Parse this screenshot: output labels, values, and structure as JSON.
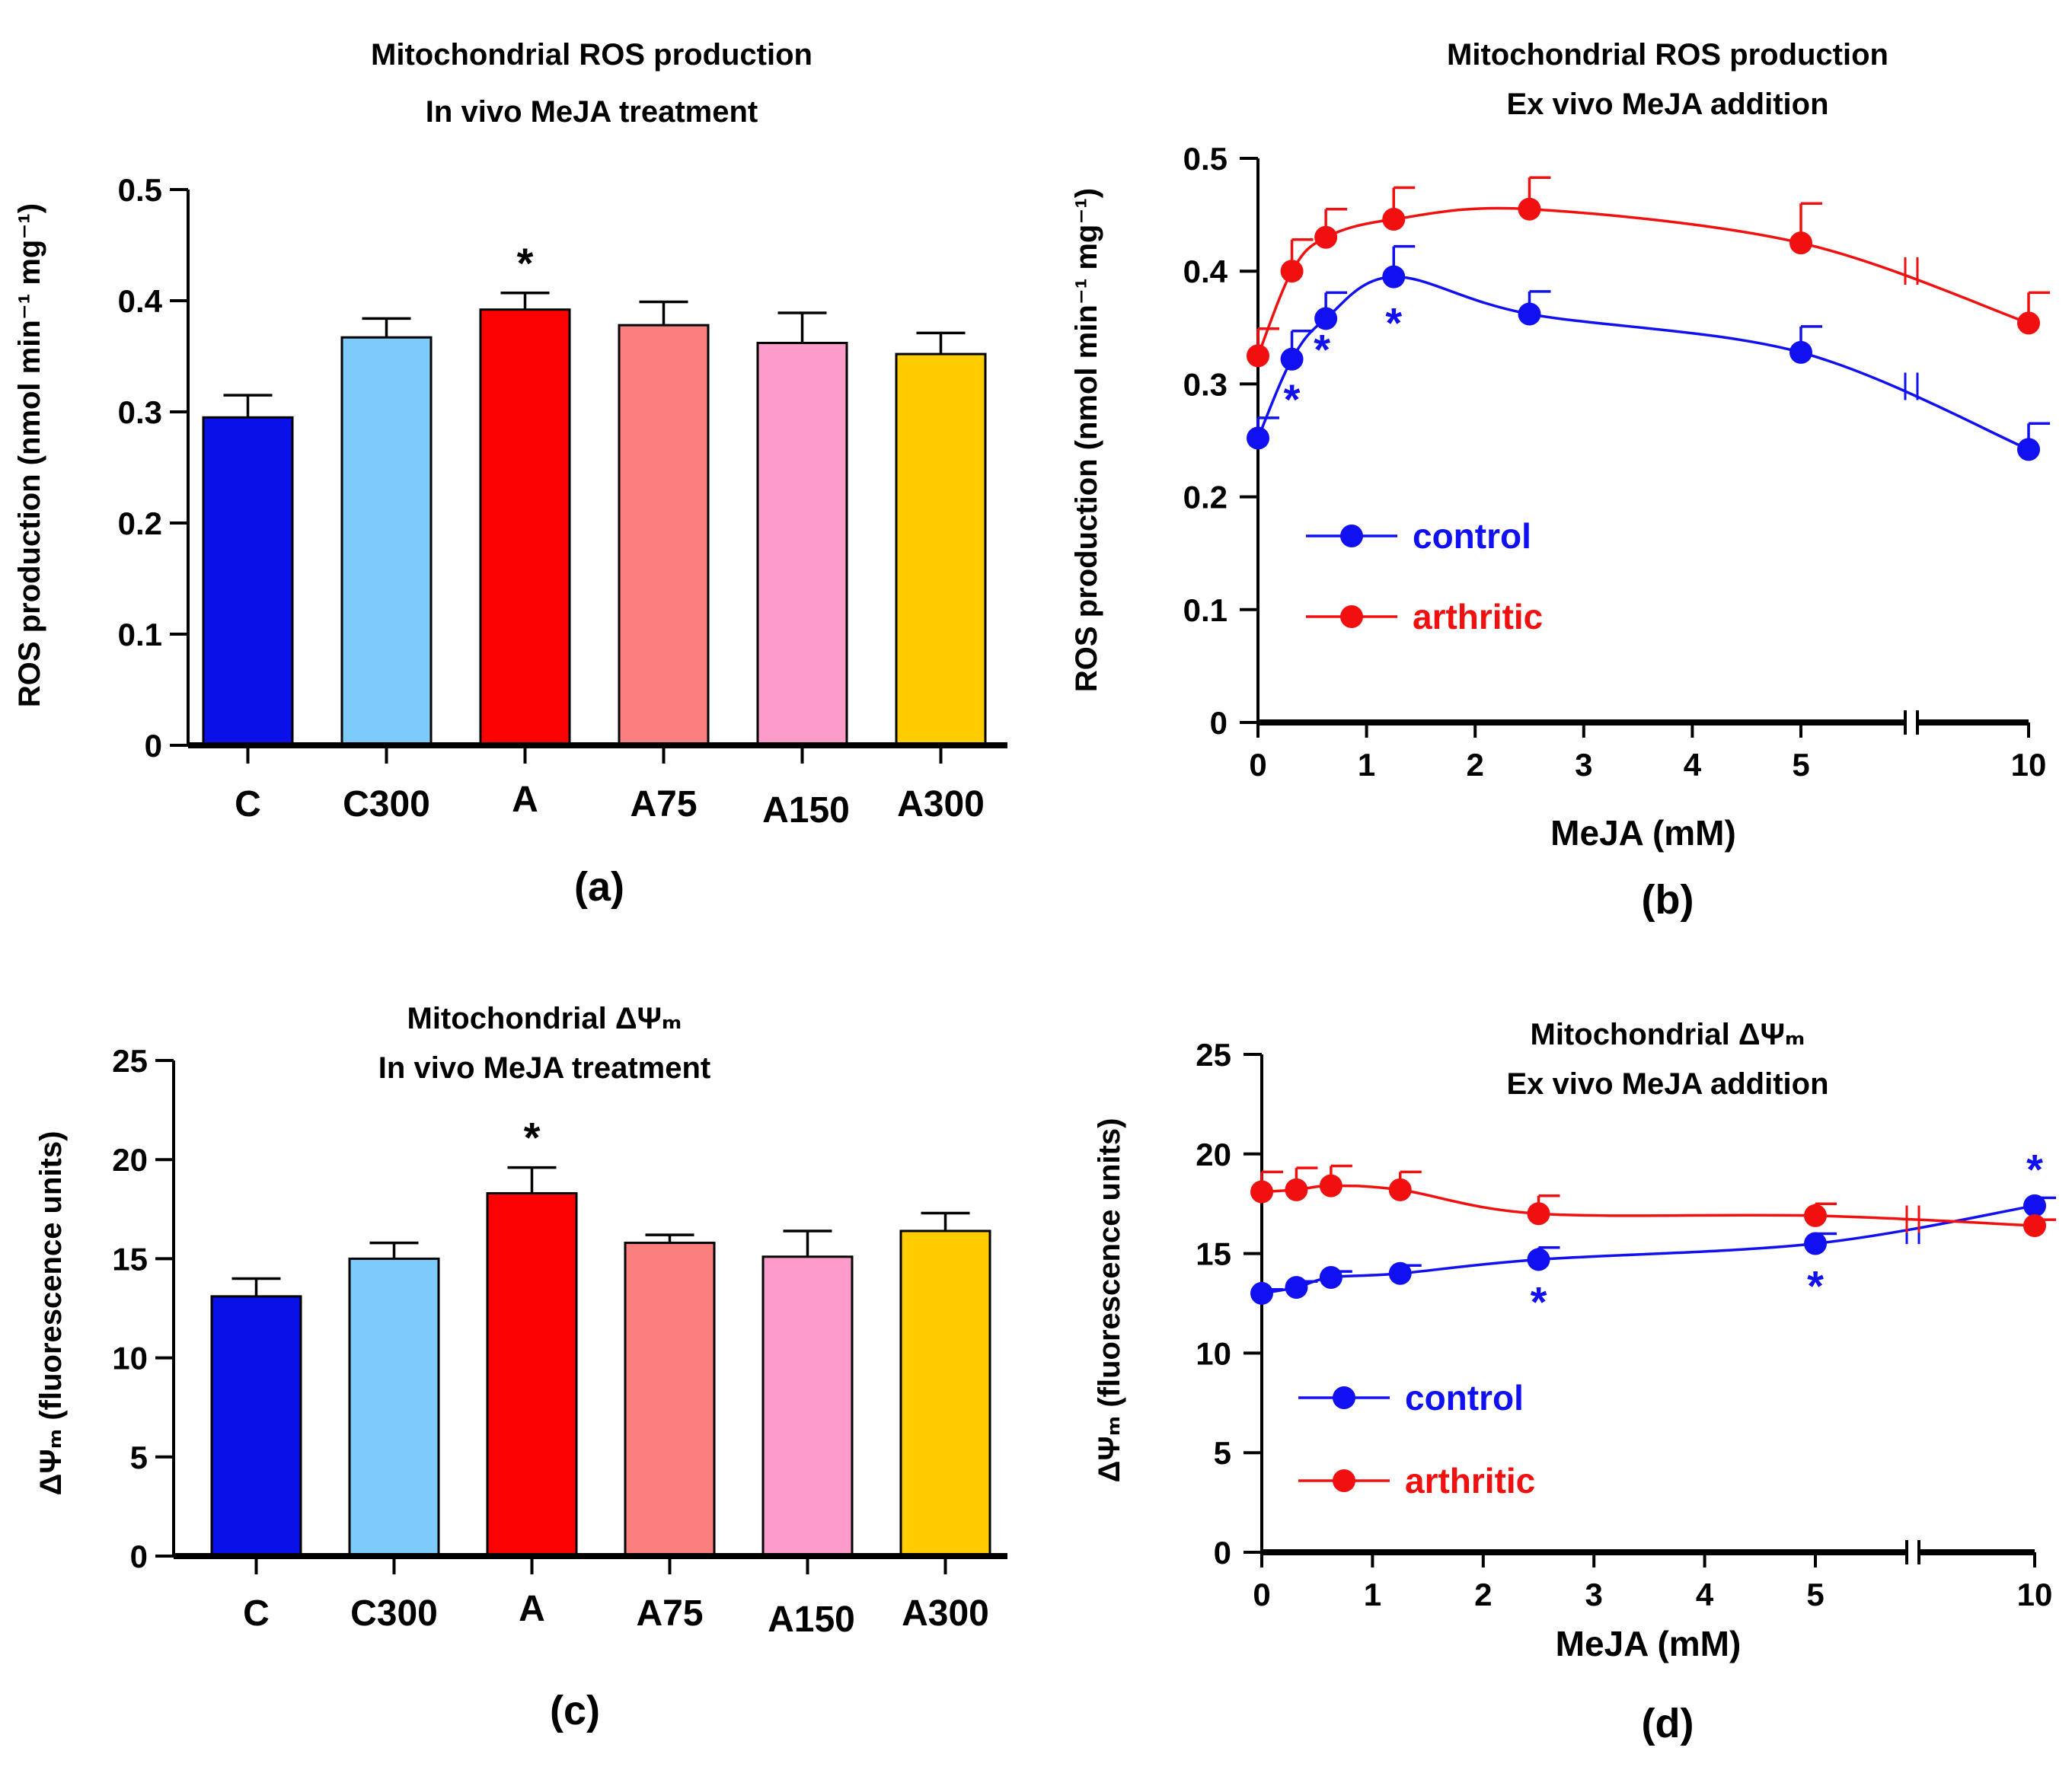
{
  "chart_data": [
    {
      "id": "a",
      "type": "bar",
      "panel_label": "(a)",
      "title": [
        "Mitochondrial ROS production",
        "In vivo MeJA treatment"
      ],
      "ylabel": "ROS production (nmol min⁻¹ mg⁻¹)",
      "ylim": [
        0,
        0.5
      ],
      "yticks": [
        "0",
        "0.1",
        "0.2",
        "0.3",
        "0.4",
        "0.5"
      ],
      "categories": [
        "C",
        "C300",
        "A",
        "A75",
        "A150",
        "A300"
      ],
      "values": [
        0.295,
        0.367,
        0.392,
        0.378,
        0.362,
        0.352
      ],
      "errors": [
        0.02,
        0.017,
        0.015,
        0.021,
        0.027,
        0.019
      ],
      "colors": [
        "#0a10e8",
        "#7ccbfb",
        "#fd0202",
        "#fc7f7f",
        "#fd9bcb",
        "#ffcc00"
      ],
      "significant": [
        "",
        "",
        "*",
        "",
        "",
        ""
      ]
    },
    {
      "id": "b",
      "type": "line",
      "panel_label": "(b)",
      "title": [
        "Mitochondrial ROS production",
        "Ex vivo MeJA addition"
      ],
      "xlabel": "MeJA (mM)",
      "ylabel": "ROS production (nmol min⁻¹ mg⁻¹)",
      "ylim": [
        0,
        0.5
      ],
      "yticks": [
        "0",
        "0.1",
        "0.2",
        "0.3",
        "0.4",
        "0.5"
      ],
      "xticks": [
        "0",
        "1",
        "2",
        "3",
        "4",
        "5",
        "10"
      ],
      "x": [
        0,
        0.3125,
        0.625,
        1.25,
        2.5,
        5,
        10
      ],
      "series": [
        {
          "name": "control",
          "color": "#1010f0",
          "values": [
            0.252,
            0.322,
            0.358,
            0.395,
            0.362,
            0.328,
            0.242
          ],
          "errors": [
            0.018,
            0.025,
            0.023,
            0.027,
            0.02,
            0.023,
            0.023
          ],
          "significant": [
            "",
            "*",
            "*",
            "*",
            "",
            "",
            ""
          ]
        },
        {
          "name": "arthritic",
          "color": "#f01010",
          "values": [
            0.325,
            0.4,
            0.43,
            0.446,
            0.455,
            0.425,
            0.354
          ],
          "errors": [
            0.024,
            0.028,
            0.025,
            0.028,
            0.028,
            0.035,
            0.027
          ],
          "significant": [
            "",
            "",
            "",
            "",
            "",
            "",
            ""
          ]
        }
      ]
    },
    {
      "id": "c",
      "type": "bar",
      "panel_label": "(c)",
      "title": [
        "Mitochondrial ΔΨₘ",
        "In vivo MeJA treatment"
      ],
      "ylabel": "ΔΨₘ (fluorescence units)",
      "ylim": [
        0,
        25
      ],
      "yticks": [
        "0",
        "5",
        "10",
        "15",
        "20",
        "25"
      ],
      "categories": [
        "C",
        "C300",
        "A",
        "A75",
        "A150",
        "A300"
      ],
      "values": [
        13.1,
        15.0,
        18.3,
        15.8,
        15.1,
        16.4
      ],
      "errors": [
        0.9,
        0.8,
        1.3,
        0.4,
        1.3,
        0.9
      ],
      "colors": [
        "#0a10e8",
        "#7ccbfb",
        "#fd0202",
        "#fc7f7f",
        "#fd9bcb",
        "#ffcc00"
      ],
      "significant": [
        "",
        "",
        "*",
        "",
        "",
        ""
      ]
    },
    {
      "id": "d",
      "type": "line",
      "panel_label": "(d)",
      "title": [
        "Mitochondrial ΔΨₘ",
        "Ex vivo MeJA addition"
      ],
      "xlabel": "MeJA (mM)",
      "ylabel": "ΔΨₘ (fluorescence units)",
      "ylim": [
        0,
        25
      ],
      "yticks": [
        "0",
        "5",
        "10",
        "15",
        "20",
        "25"
      ],
      "xticks": [
        "0",
        "1",
        "2",
        "3",
        "4",
        "5",
        "10"
      ],
      "x": [
        0,
        0.3125,
        0.625,
        1.25,
        2.5,
        5,
        10
      ],
      "series": [
        {
          "name": "control",
          "color": "#1010f0",
          "values": [
            13.0,
            13.3,
            13.8,
            14.0,
            14.7,
            15.5,
            17.4
          ],
          "errors": [
            0.2,
            0.3,
            0.3,
            0.4,
            0.6,
            0.5,
            0.4
          ],
          "significant": [
            "",
            "",
            "",
            "",
            "*",
            "*",
            "*"
          ]
        },
        {
          "name": "arthritic",
          "color": "#f01010",
          "values": [
            18.1,
            18.2,
            18.4,
            18.2,
            17.0,
            16.9,
            16.4
          ],
          "errors": [
            1.0,
            1.1,
            1.0,
            0.9,
            0.9,
            0.6,
            0.3
          ],
          "significant": [
            "",
            "",
            "",
            "",
            "",
            "",
            ""
          ]
        }
      ]
    }
  ]
}
